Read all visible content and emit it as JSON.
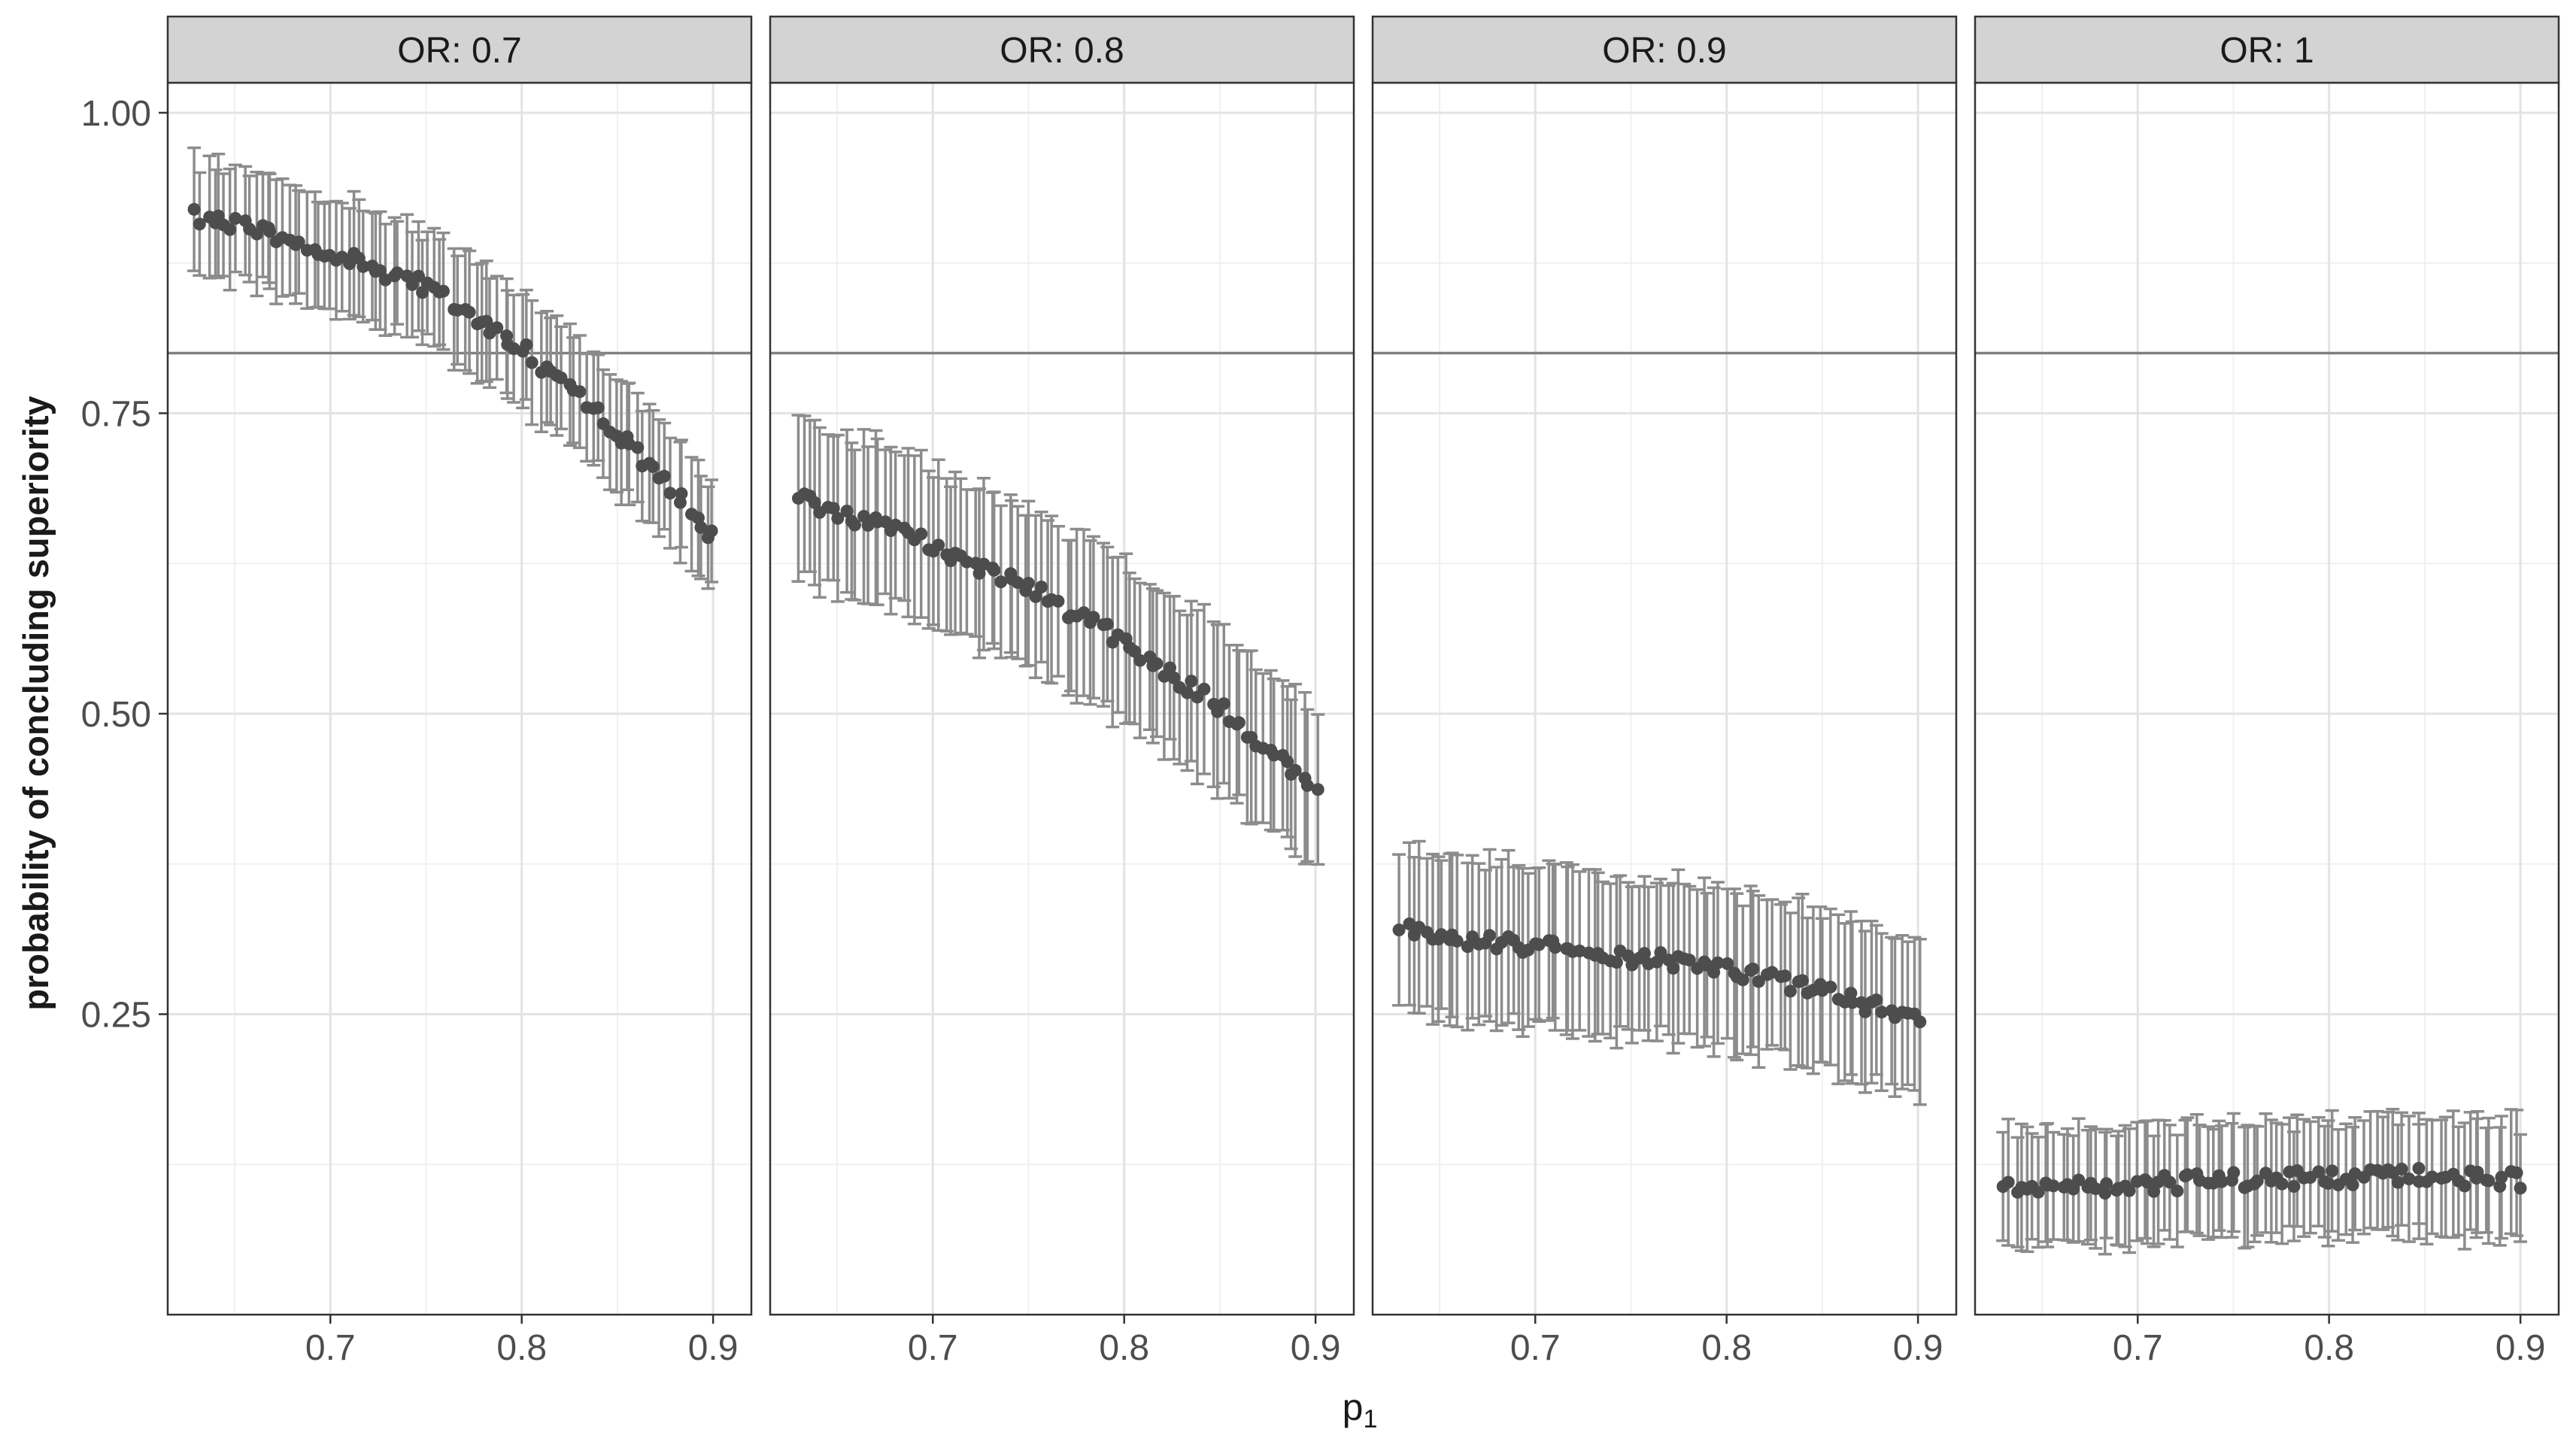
{
  "figure": {
    "ylabel": "probability of concluding superiority",
    "xlabel_main": "p",
    "xlabel_sub": "1"
  },
  "chart_data": {
    "type": "scatter",
    "facet_by": "OR",
    "panels": [
      "OR: 0.7",
      "OR: 0.8",
      "OR: 0.9",
      "OR: 1"
    ],
    "xlabel": "p1",
    "ylabel": "probability of concluding superiority",
    "xlim": [
      0.615,
      0.92
    ],
    "ylim": [
      0.0,
      1.025
    ],
    "x_ticks": [
      0.7,
      0.8,
      0.9
    ],
    "x_tick_labels": [
      "0.7",
      "0.8",
      "0.9"
    ],
    "y_ticks": [
      0.25,
      0.5,
      0.75,
      1.0
    ],
    "y_tick_labels": [
      "0.25",
      "0.50",
      "0.75",
      "1.00"
    ],
    "reference_line_y": 0.8,
    "grid": true,
    "p1_range": [
      0.63,
      0.9
    ],
    "n_points_per_panel": 90,
    "series": [
      {
        "panel": "OR: 0.7",
        "trend": [
          [
            0.63,
            0.915
          ],
          [
            0.7,
            0.885
          ],
          [
            0.75,
            0.855
          ],
          [
            0.8,
            0.805
          ],
          [
            0.85,
            0.735
          ],
          [
            0.9,
            0.648
          ]
        ],
        "ci_halfwidth": 0.047
      },
      {
        "panel": "OR: 0.8",
        "trend": [
          [
            0.63,
            0.68
          ],
          [
            0.7,
            0.64
          ],
          [
            0.75,
            0.605
          ],
          [
            0.8,
            0.56
          ],
          [
            0.85,
            0.505
          ],
          [
            0.9,
            0.435
          ]
        ],
        "ci_halfwidth": 0.066
      },
      {
        "panel": "OR: 0.9",
        "trend": [
          [
            0.63,
            0.32
          ],
          [
            0.7,
            0.306
          ],
          [
            0.75,
            0.298
          ],
          [
            0.8,
            0.288
          ],
          [
            0.85,
            0.27
          ],
          [
            0.9,
            0.245
          ]
        ],
        "ci_halfwidth": 0.066
      },
      {
        "panel": "OR: 1",
        "trend": [
          [
            0.63,
            0.108
          ],
          [
            0.7,
            0.108
          ],
          [
            0.75,
            0.112
          ],
          [
            0.8,
            0.114
          ],
          [
            0.85,
            0.115
          ],
          [
            0.9,
            0.112
          ]
        ],
        "ci_halfwidth": 0.048
      }
    ]
  },
  "colors": {
    "point": "#4d4d4d",
    "errorbar": "#8c8c8c",
    "reference_line": "#808080",
    "strip_bg": "#d3d3d3",
    "grid_major": "#e3e3e3",
    "grid_minor": "#f0f0f0",
    "panel_border": "#333333",
    "text": "#1a1a1a"
  }
}
